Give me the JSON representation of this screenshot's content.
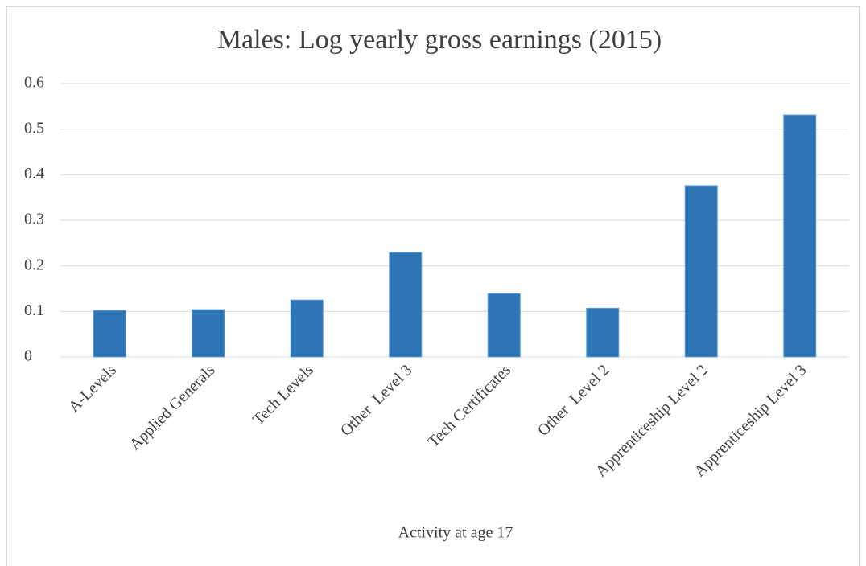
{
  "chart_data": {
    "type": "bar",
    "title": "Males: Log yearly gross earnings (2015)",
    "x_label": "Activity at age 17",
    "categories": [
      "A-Levels",
      "Applied Generals",
      "Tech Levels",
      "Other  Level 3",
      "Tech Certificates",
      "Other  Level 2",
      "Apprenticeship Level 2",
      "Apprenticeship Level 3"
    ],
    "values": [
      0.102,
      0.104,
      0.125,
      0.229,
      0.139,
      0.107,
      0.376,
      0.531
    ],
    "color": "#2e75b6",
    "ylim": [
      0,
      0.6
    ],
    "yticks": [
      0,
      0.1,
      0.2,
      0.3,
      0.4,
      0.5,
      0.6
    ],
    "grid": true
  }
}
